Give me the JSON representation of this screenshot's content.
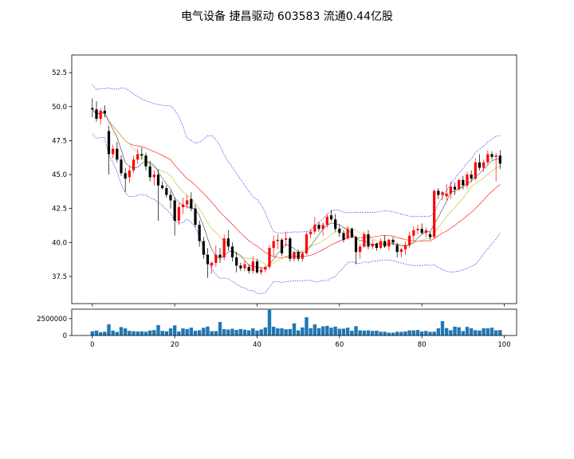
{
  "chart_data": [
    {
      "type": "candlestick",
      "title": "电气设备 捷昌驱动 603583 流通0.44亿股",
      "xlim": [
        -5,
        103
      ],
      "ylim": [
        35.5,
        53.8
      ],
      "yticks": [
        37.5,
        40.0,
        42.5,
        45.0,
        47.5,
        50.0,
        52.5
      ],
      "ytick_labels": [
        "37.5",
        "40.0",
        "42.5",
        "45.0",
        "47.5",
        "50.0",
        "52.5"
      ],
      "overlays": [
        "ma5",
        "ma10",
        "ma20",
        "bollinger_upper",
        "bollinger_lower"
      ],
      "colors": {
        "up": "#ff0000",
        "down": "#000000",
        "ma5": "#000000",
        "ma10": "#bcbd22",
        "ma20": "#ff0000",
        "bollinger": "#0000ff"
      },
      "ohlc": [
        [
          49.9,
          50.6,
          49.2,
          49.8
        ],
        [
          49.8,
          50.4,
          48.9,
          49.1
        ],
        [
          49.1,
          49.9,
          48.7,
          49.7
        ],
        [
          49.7,
          50.1,
          49.2,
          49.5
        ],
        [
          48.2,
          48.6,
          45.0,
          46.5
        ],
        [
          46.5,
          47.2,
          46.2,
          46.9
        ],
        [
          46.9,
          47.4,
          45.9,
          46.1
        ],
        [
          46.1,
          46.4,
          44.9,
          45.1
        ],
        [
          45.1,
          45.5,
          43.7,
          44.7
        ],
        [
          44.8,
          45.6,
          44.4,
          45.3
        ],
        [
          45.3,
          46.4,
          45.1,
          46.1
        ],
        [
          46.1,
          46.9,
          45.8,
          46.5
        ],
        [
          46.5,
          47.0,
          46.1,
          46.4
        ],
        [
          46.4,
          46.6,
          45.3,
          45.6
        ],
        [
          45.6,
          46.0,
          44.5,
          44.8
        ],
        [
          44.8,
          45.3,
          44.2,
          45.0
        ],
        [
          45.0,
          45.4,
          41.6,
          44.2
        ],
        [
          44.2,
          44.5,
          43.9,
          44.0
        ],
        [
          44.0,
          44.2,
          43.3,
          43.5
        ],
        [
          43.5,
          43.8,
          42.5,
          43.1
        ],
        [
          43.1,
          43.3,
          40.5,
          41.6
        ],
        [
          41.6,
          42.9,
          41.3,
          42.6
        ],
        [
          42.6,
          43.3,
          42.1,
          42.8
        ],
        [
          42.8,
          43.5,
          42.5,
          43.1
        ],
        [
          43.2,
          43.7,
          42.3,
          42.5
        ],
        [
          42.5,
          42.8,
          41.1,
          41.3
        ],
        [
          41.3,
          41.6,
          39.7,
          40.1
        ],
        [
          40.1,
          40.4,
          38.8,
          39.1
        ],
        [
          39.1,
          39.6,
          37.4,
          38.4
        ],
        [
          38.3,
          38.6,
          37.7,
          38.5
        ],
        [
          38.5,
          39.8,
          38.2,
          39.1
        ],
        [
          39.1,
          39.6,
          38.5,
          38.9
        ],
        [
          38.9,
          40.6,
          38.7,
          40.3
        ],
        [
          40.3,
          40.9,
          39.4,
          39.7
        ],
        [
          39.7,
          40.0,
          38.6,
          38.9
        ],
        [
          38.9,
          39.3,
          37.8,
          38.3
        ],
        [
          38.3,
          38.5,
          37.9,
          38.1
        ],
        [
          38.1,
          38.7,
          37.9,
          38.4
        ],
        [
          38.2,
          38.4,
          37.7,
          37.9
        ],
        [
          37.9,
          39.0,
          37.7,
          38.6
        ],
        [
          38.6,
          38.8,
          37.7,
          37.8
        ],
        [
          37.8,
          38.2,
          37.6,
          38.0
        ],
        [
          38.0,
          38.3,
          37.8,
          38.2
        ],
        [
          38.2,
          39.8,
          38.0,
          39.6
        ],
        [
          39.6,
          40.5,
          39.0,
          40.1
        ],
        [
          40.1,
          40.6,
          39.5,
          40.2
        ],
        [
          40.2,
          40.3,
          39.0,
          39.2
        ],
        [
          40.2,
          40.8,
          39.7,
          40.3
        ],
        [
          40.3,
          40.4,
          38.6,
          38.8
        ],
        [
          38.8,
          39.4,
          38.6,
          39.3
        ],
        [
          39.3,
          39.5,
          38.6,
          38.8
        ],
        [
          38.8,
          39.3,
          38.6,
          39.2
        ],
        [
          39.2,
          40.8,
          39.1,
          40.6
        ],
        [
          40.6,
          41.0,
          40.3,
          40.8
        ],
        [
          40.8,
          41.9,
          40.6,
          41.3
        ],
        [
          41.3,
          41.5,
          40.8,
          41.0
        ],
        [
          41.0,
          41.5,
          40.5,
          41.3
        ],
        [
          41.3,
          42.1,
          41.1,
          41.9
        ],
        [
          42.0,
          42.4,
          41.6,
          41.7
        ],
        [
          41.7,
          42.1,
          40.8,
          41.0
        ],
        [
          41.0,
          41.3,
          40.4,
          40.7
        ],
        [
          40.7,
          40.9,
          40.0,
          40.2
        ],
        [
          40.3,
          41.2,
          40.2,
          41.0
        ],
        [
          41.0,
          41.1,
          40.3,
          40.4
        ],
        [
          40.4,
          40.5,
          38.4,
          39.3
        ],
        [
          39.3,
          39.9,
          38.8,
          39.7
        ],
        [
          39.7,
          40.8,
          39.6,
          40.6
        ],
        [
          40.6,
          40.9,
          39.5,
          39.7
        ],
        [
          39.7,
          40.2,
          39.5,
          39.9
        ],
        [
          39.9,
          40.0,
          39.4,
          39.6
        ],
        [
          39.6,
          40.3,
          39.5,
          40.1
        ],
        [
          40.1,
          40.5,
          39.6,
          39.7
        ],
        [
          39.7,
          40.3,
          39.4,
          40.2
        ],
        [
          40.2,
          40.4,
          39.8,
          40.0
        ],
        [
          39.8,
          40.0,
          38.9,
          39.3
        ],
        [
          39.3,
          39.6,
          38.9,
          39.5
        ],
        [
          39.5,
          40.1,
          39.1,
          39.8
        ],
        [
          39.8,
          40.8,
          39.6,
          40.5
        ],
        [
          40.5,
          41.2,
          40.1,
          40.9
        ],
        [
          40.9,
          41.3,
          40.6,
          41.0
        ],
        [
          41.0,
          41.4,
          40.6,
          40.7
        ],
        [
          40.7,
          41.1,
          40.4,
          40.9
        ],
        [
          40.6,
          40.8,
          40.2,
          40.4
        ],
        [
          40.4,
          43.9,
          40.3,
          43.8
        ],
        [
          43.8,
          44.0,
          43.2,
          43.5
        ],
        [
          43.5,
          43.8,
          43.1,
          43.7
        ],
        [
          43.4,
          44.3,
          43.1,
          43.6
        ],
        [
          43.6,
          44.5,
          43.2,
          44.1
        ],
        [
          44.1,
          44.4,
          43.5,
          43.9
        ],
        [
          43.9,
          44.7,
          43.8,
          44.6
        ],
        [
          44.6,
          44.9,
          43.9,
          44.2
        ],
        [
          44.2,
          45.2,
          44.0,
          45.0
        ],
        [
          45.0,
          45.3,
          44.5,
          44.7
        ],
        [
          44.7,
          46.2,
          44.6,
          45.9
        ],
        [
          45.9,
          46.5,
          45.3,
          45.5
        ],
        [
          45.5,
          46.1,
          45.2,
          45.9
        ],
        [
          45.9,
          46.8,
          45.7,
          46.5
        ],
        [
          46.5,
          46.7,
          46.1,
          46.3
        ],
        [
          46.3,
          46.6,
          44.5,
          46.4
        ],
        [
          46.4,
          46.8,
          45.4,
          45.8
        ]
      ]
    },
    {
      "type": "bar",
      "series": [
        {
          "name": "volume"
        }
      ],
      "ylim": [
        0,
        3900000
      ],
      "yticks": [
        0,
        2500000
      ],
      "ytick_labels": [
        "0",
        "2500000"
      ],
      "xticks": [
        0,
        20,
        40,
        60,
        80,
        100
      ],
      "xtick_labels": [
        "0",
        "20",
        "40",
        "60",
        "80",
        "100"
      ],
      "bar_color": "#1f77b4",
      "values": [
        620000,
        720000,
        480000,
        550000,
        1650000,
        720000,
        520000,
        1250000,
        1050000,
        680000,
        640000,
        600000,
        620000,
        560000,
        740000,
        800000,
        1550000,
        680000,
        620000,
        1050000,
        1500000,
        600000,
        1050000,
        960000,
        1160000,
        700000,
        780000,
        1140000,
        1320000,
        640000,
        660000,
        2000000,
        940000,
        880000,
        1000000,
        820000,
        960000,
        860000,
        760000,
        1060000,
        720000,
        900000,
        1200000,
        3800000,
        1300000,
        1060000,
        1060000,
        920000,
        960000,
        1800000,
        760000,
        1200000,
        2700000,
        1080000,
        1640000,
        1080000,
        1360000,
        1420000,
        1160000,
        1320000,
        1000000,
        1020000,
        1160000,
        700000,
        1380000,
        760000,
        720000,
        760000,
        680000,
        720000,
        560000,
        560000,
        420000,
        420000,
        560000,
        540000,
        600000,
        760000,
        760000,
        820000,
        600000,
        680000,
        540000,
        560000,
        1060000,
        2120000,
        1100000,
        780000,
        1300000,
        1220000,
        660000,
        1280000,
        1060000,
        780000,
        740000,
        1060000,
        1060000,
        1160000,
        760000,
        800000
      ]
    }
  ]
}
